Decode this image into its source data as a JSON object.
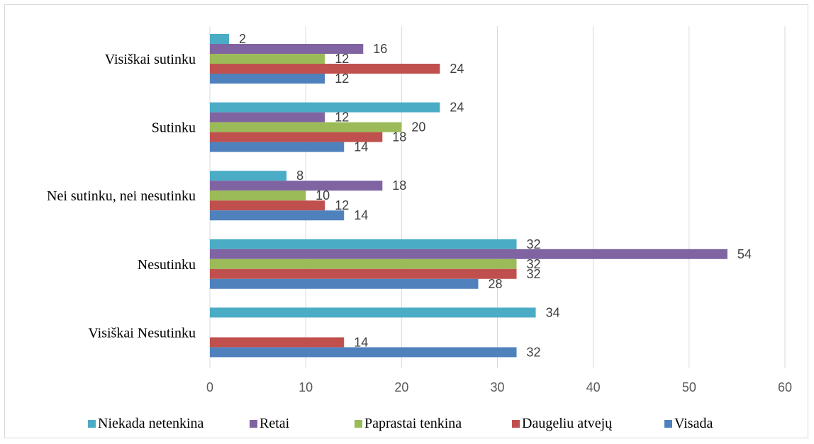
{
  "chart_data": {
    "type": "bar",
    "orientation": "horizontal",
    "categories": [
      "Visiškai sutinku",
      "Sutinku",
      "Nei sutinku, nei nesutinku",
      "Nesutinku",
      "Visiškai Nesutinku"
    ],
    "series": [
      {
        "name": "Niekada netenkina",
        "color": "#4bacc6",
        "values": [
          2,
          24,
          8,
          32,
          34
        ]
      },
      {
        "name": "Retai",
        "color": "#8064a2",
        "values": [
          16,
          12,
          18,
          54,
          null
        ]
      },
      {
        "name": "Paprastai tenkina",
        "color": "#9bbb59",
        "values": [
          12,
          20,
          10,
          32,
          null
        ]
      },
      {
        "name": "Daugeliu atvejų",
        "color": "#c0504d",
        "values": [
          24,
          18,
          12,
          32,
          14
        ]
      },
      {
        "name": "Visada",
        "color": "#4f81bd",
        "values": [
          12,
          14,
          14,
          28,
          32
        ]
      }
    ],
    "xlim": [
      0,
      60
    ],
    "xticks": [
      0,
      10,
      20,
      30,
      40,
      50,
      60
    ],
    "grid": true,
    "legend": "bottom",
    "title": "",
    "xlabel": "",
    "ylabel": ""
  }
}
